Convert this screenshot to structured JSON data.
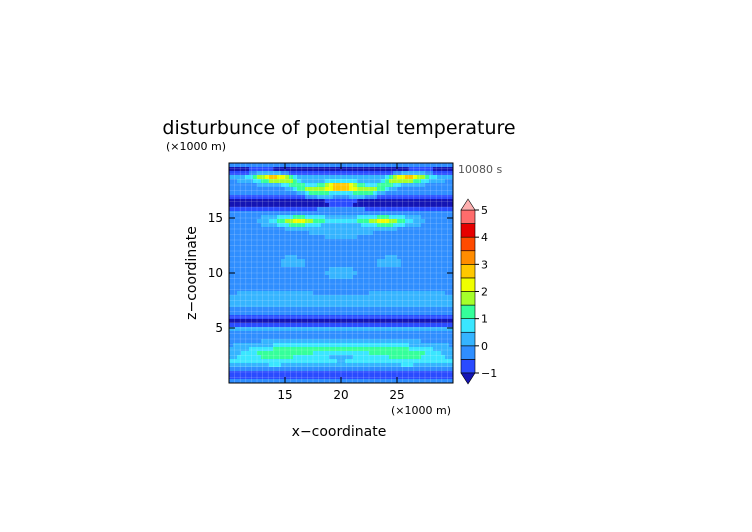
{
  "chart_data": {
    "type": "heatmap",
    "title": "disturbunce of potential temperature",
    "time_label": "10080 s",
    "xlabel": "x−coordinate",
    "ylabel": "z−coordinate",
    "x_unit": "(×1000 m)",
    "y_unit": "(×1000 m)",
    "xlim": [
      10,
      30
    ],
    "ylim": [
      0,
      20
    ],
    "x_ticks": [
      15,
      20,
      25
    ],
    "y_ticks": [
      5,
      10,
      15
    ],
    "colorbar": {
      "levels": [
        -1,
        -0.5,
        0,
        0.5,
        1,
        1.5,
        2,
        2.5,
        3,
        3.5,
        4,
        4.5,
        5
      ],
      "tick_labels": [
        "-1",
        "0",
        "1",
        "2",
        "3",
        "4",
        "5"
      ],
      "colors": [
        "#1414b4",
        "#2a4bff",
        "#2f8eff",
        "#35b4ff",
        "#3ae6ff",
        "#35ff9a",
        "#a5ff2a",
        "#f0ff00",
        "#ffc800",
        "#ff8c00",
        "#ff4b00",
        "#e60000",
        "#ff6c6c",
        "#ffb0b0"
      ],
      "extend": "both"
    },
    "features": [
      {
        "x": 20,
        "z": 17.8,
        "value": 4.0
      },
      {
        "x": 13.5,
        "z": 18.6,
        "value": 2.2
      },
      {
        "x": 26.5,
        "z": 18.6,
        "value": 2.2
      },
      {
        "x": 16,
        "z": 14.7,
        "value": 2.2
      },
      {
        "x": 24,
        "z": 14.7,
        "value": 2.2
      },
      {
        "x": 20,
        "z": 16.3,
        "value": -1.0
      },
      {
        "x": 20,
        "z": 5.6,
        "value": -1.0
      },
      {
        "x": 20,
        "z": 3.0,
        "value": 1.4
      },
      {
        "x": 14,
        "z": 2.6,
        "value": 1.0
      },
      {
        "x": 26,
        "z": 2.6,
        "value": 1.0
      }
    ]
  }
}
